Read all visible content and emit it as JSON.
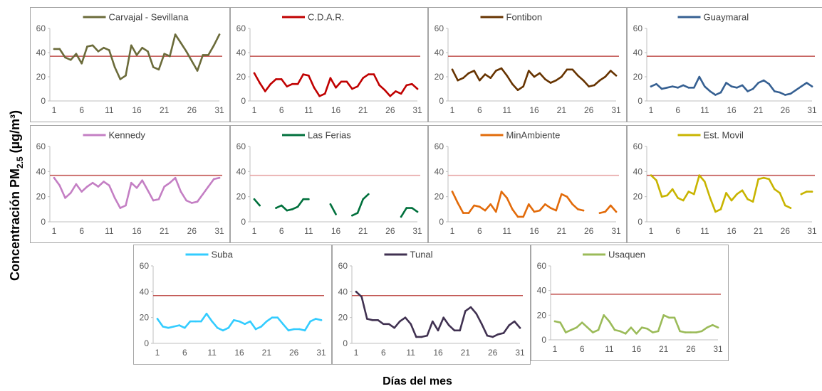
{
  "figure": {
    "ylabel_main": "Concentración PM",
    "ylabel_sub": "2.5",
    "ylabel_unit": " (µg/m³)",
    "xlabel": "Días del mes"
  },
  "chart_data": [
    {
      "type": "line",
      "title": "",
      "series": [
        {
          "name": "Carvajal - Sevillana",
          "color": "#6b6b3a",
          "x": [
            1,
            2,
            3,
            4,
            5,
            6,
            7,
            8,
            9,
            10,
            11,
            12,
            13,
            14,
            15,
            16,
            17,
            18,
            19,
            20,
            21,
            22,
            23,
            24,
            25,
            26,
            27,
            28,
            29,
            30,
            31
          ],
          "values": [
            43,
            43,
            36,
            34,
            39,
            31,
            45,
            46,
            41,
            44,
            42,
            28,
            18,
            21,
            46,
            38,
            44,
            41,
            28,
            26,
            39,
            37,
            55,
            48,
            41,
            33,
            25,
            38,
            38,
            46,
            55
          ]
        }
      ],
      "limit": {
        "value": 37,
        "color": "#c0504d"
      },
      "ylim": [
        0,
        60
      ],
      "yticks": [
        0,
        20,
        40,
        60
      ],
      "xticks": [
        1,
        6,
        11,
        16,
        21,
        26,
        31
      ]
    },
    {
      "type": "line",
      "title": "",
      "series": [
        {
          "name": "C.D.A.R.",
          "color": "#c00000",
          "x": [
            1,
            2,
            3,
            4,
            5,
            6,
            7,
            8,
            9,
            10,
            11,
            12,
            13,
            14,
            15,
            16,
            17,
            18,
            19,
            20,
            21,
            22,
            23,
            24,
            25,
            26,
            27,
            28,
            29,
            30,
            31
          ],
          "values": [
            23,
            15,
            8,
            14,
            18,
            18,
            12,
            14,
            14,
            22,
            21,
            11,
            4,
            6,
            19,
            11,
            16,
            16,
            10,
            12,
            19,
            22,
            22,
            13,
            9,
            4,
            8,
            6,
            13,
            14,
            10
          ]
        }
      ],
      "limit": {
        "value": 37,
        "color": "#c0504d"
      },
      "ylim": [
        0,
        60
      ],
      "yticks": [
        0,
        20,
        40,
        60
      ],
      "xticks": [
        1,
        6,
        11,
        16,
        21,
        26,
        31
      ]
    },
    {
      "type": "line",
      "title": "",
      "series": [
        {
          "name": "Fontibon",
          "color": "#663300",
          "x": [
            1,
            2,
            3,
            4,
            5,
            6,
            7,
            8,
            9,
            10,
            11,
            12,
            13,
            14,
            15,
            16,
            17,
            18,
            19,
            20,
            21,
            22,
            23,
            24,
            25,
            26,
            27,
            28,
            29,
            30,
            31
          ],
          "values": [
            26,
            17,
            19,
            23,
            25,
            17,
            22,
            19,
            25,
            27,
            21,
            14,
            9,
            12,
            25,
            20,
            23,
            18,
            15,
            17,
            20,
            26,
            26,
            21,
            17,
            12,
            13,
            17,
            20,
            25,
            21
          ]
        }
      ],
      "limit": {
        "value": 37,
        "color": "#c0504d"
      },
      "ylim": [
        0,
        60
      ],
      "yticks": [
        0,
        20,
        40,
        60
      ],
      "xticks": [
        1,
        6,
        11,
        16,
        21,
        26,
        31
      ]
    },
    {
      "type": "line",
      "title": "",
      "series": [
        {
          "name": "Guaymaral",
          "color": "#366092",
          "x": [
            1,
            2,
            3,
            4,
            5,
            6,
            7,
            8,
            9,
            10,
            11,
            12,
            13,
            14,
            15,
            16,
            17,
            18,
            19,
            20,
            21,
            22,
            23,
            24,
            25,
            26,
            27,
            28,
            29,
            30,
            31
          ],
          "values": [
            12,
            14,
            10,
            11,
            12,
            11,
            13,
            11,
            11,
            20,
            12,
            8,
            5,
            7,
            15,
            12,
            11,
            13,
            8,
            10,
            15,
            17,
            14,
            8,
            7,
            5,
            6,
            9,
            12,
            15,
            12
          ]
        }
      ],
      "limit": {
        "value": 37,
        "color": "#c0504d"
      },
      "ylim": [
        0,
        60
      ],
      "yticks": [
        0,
        20,
        40,
        60
      ],
      "xticks": [
        1,
        6,
        11,
        16,
        21,
        26,
        31
      ]
    },
    {
      "type": "line",
      "title": "",
      "series": [
        {
          "name": "Kennedy",
          "color": "#c47fc4",
          "x": [
            1,
            2,
            3,
            4,
            5,
            6,
            7,
            8,
            9,
            10,
            11,
            12,
            13,
            14,
            15,
            16,
            17,
            18,
            19,
            20,
            21,
            22,
            23,
            24,
            25,
            26,
            27,
            28,
            29,
            30,
            31
          ],
          "values": [
            35,
            29,
            19,
            23,
            30,
            24,
            28,
            31,
            28,
            32,
            29,
            19,
            11,
            13,
            31,
            27,
            33,
            25,
            17,
            18,
            28,
            31,
            35,
            24,
            17,
            15,
            16,
            22,
            28,
            34,
            35
          ]
        }
      ],
      "limit": {
        "value": 37,
        "color": "#c0504d"
      },
      "ylim": [
        0,
        60
      ],
      "yticks": [
        0,
        20,
        40,
        60
      ],
      "xticks": [
        1,
        6,
        11,
        16,
        21,
        26,
        31
      ]
    },
    {
      "type": "line",
      "title": "",
      "series": [
        {
          "name": "Las Ferias",
          "color": "#00703c",
          "x": [
            1,
            2,
            3,
            4,
            5,
            6,
            7,
            8,
            9,
            10,
            11,
            12,
            13,
            14,
            15,
            16,
            17,
            18,
            19,
            20,
            21,
            22,
            23,
            24,
            25,
            26,
            27,
            28,
            29,
            30,
            31
          ],
          "values": [
            18,
            13,
            null,
            null,
            11,
            13,
            9,
            10,
            12,
            18,
            18,
            null,
            null,
            null,
            14,
            6,
            null,
            null,
            5,
            7,
            18,
            22,
            null,
            null,
            null,
            null,
            null,
            4,
            11,
            11,
            8
          ]
        }
      ],
      "limit": {
        "value": 37,
        "color": "#e6a3a3"
      },
      "ylim": [
        0,
        60
      ],
      "yticks": [
        0,
        20,
        40,
        60
      ],
      "xticks": [
        1,
        6,
        11,
        16,
        21,
        26,
        31
      ]
    },
    {
      "type": "line",
      "title": "",
      "series": [
        {
          "name": "MinAmbiente",
          "color": "#e26b0a",
          "x": [
            1,
            2,
            3,
            4,
            5,
            6,
            7,
            8,
            9,
            10,
            11,
            12,
            13,
            14,
            15,
            16,
            17,
            18,
            19,
            20,
            21,
            22,
            23,
            24,
            25,
            26,
            27,
            28,
            29,
            30,
            31
          ],
          "values": [
            24,
            15,
            7,
            7,
            13,
            12,
            9,
            14,
            8,
            24,
            19,
            10,
            4,
            4,
            14,
            8,
            9,
            14,
            11,
            9,
            22,
            20,
            14,
            10,
            9,
            null,
            null,
            7,
            8,
            13,
            8
          ]
        }
      ],
      "limit": {
        "value": 37,
        "color": "#e6a3a3"
      },
      "ylim": [
        0,
        60
      ],
      "yticks": [
        0,
        20,
        40,
        60
      ],
      "xticks": [
        1,
        6,
        11,
        16,
        21,
        26,
        31
      ]
    },
    {
      "type": "line",
      "title": "",
      "series": [
        {
          "name": "Est. Movil",
          "color": "#c8b400",
          "x": [
            1,
            2,
            3,
            4,
            5,
            6,
            7,
            8,
            9,
            10,
            11,
            12,
            13,
            14,
            15,
            16,
            17,
            18,
            19,
            20,
            21,
            22,
            23,
            24,
            25,
            26,
            27,
            28,
            29,
            30,
            31
          ],
          "values": [
            37,
            33,
            20,
            21,
            26,
            19,
            17,
            24,
            22,
            37,
            32,
            19,
            8,
            10,
            23,
            17,
            22,
            25,
            18,
            16,
            34,
            35,
            34,
            26,
            23,
            13,
            11,
            null,
            22,
            24,
            24
          ]
        }
      ],
      "limit": {
        "value": 37,
        "color": "#c0504d"
      },
      "ylim": [
        0,
        60
      ],
      "yticks": [
        0,
        20,
        40,
        60
      ],
      "xticks": [
        1,
        6,
        11,
        16,
        21,
        26,
        31
      ]
    },
    {
      "type": "line",
      "title": "",
      "series": [
        {
          "name": "Suba",
          "color": "#33ccff",
          "x": [
            1,
            2,
            3,
            4,
            5,
            6,
            7,
            8,
            9,
            10,
            11,
            12,
            13,
            14,
            15,
            16,
            17,
            18,
            19,
            20,
            21,
            22,
            23,
            24,
            25,
            26,
            27,
            28,
            29,
            30,
            31
          ],
          "values": [
            19,
            13,
            12,
            13,
            14,
            12,
            17,
            17,
            17,
            23,
            17,
            12,
            10,
            12,
            18,
            17,
            15,
            17,
            11,
            13,
            17,
            20,
            20,
            15,
            10,
            11,
            11,
            10,
            17,
            19,
            18
          ]
        }
      ],
      "limit": {
        "value": 37,
        "color": "#c0504d"
      },
      "ylim": [
        0,
        60
      ],
      "yticks": [
        0,
        20,
        40,
        60
      ],
      "xticks": [
        1,
        6,
        11,
        16,
        21,
        26,
        31
      ]
    },
    {
      "type": "line",
      "title": "",
      "series": [
        {
          "name": "Tunal",
          "color": "#403151",
          "x": [
            1,
            2,
            3,
            4,
            5,
            6,
            7,
            8,
            9,
            10,
            11,
            12,
            13,
            14,
            15,
            16,
            17,
            18,
            19,
            20,
            21,
            22,
            23,
            24,
            25,
            26,
            27,
            28,
            29,
            30,
            31
          ],
          "values": [
            40,
            36,
            19,
            18,
            18,
            15,
            15,
            12,
            17,
            20,
            15,
            5,
            5,
            6,
            17,
            10,
            20,
            14,
            10,
            10,
            25,
            28,
            23,
            15,
            6,
            5,
            7,
            8,
            14,
            17,
            12
          ]
        }
      ],
      "limit": {
        "value": 37,
        "color": "#c0504d"
      },
      "ylim": [
        0,
        60
      ],
      "yticks": [
        0,
        20,
        40,
        60
      ],
      "xticks": [
        1,
        6,
        11,
        16,
        21,
        26,
        31
      ]
    },
    {
      "type": "line",
      "title": "",
      "series": [
        {
          "name": "Usaquen",
          "color": "#9bbb59",
          "x": [
            1,
            2,
            3,
            4,
            5,
            6,
            7,
            8,
            9,
            10,
            11,
            12,
            13,
            14,
            15,
            16,
            17,
            18,
            19,
            20,
            21,
            22,
            23,
            24,
            25,
            26,
            27,
            28,
            29,
            30,
            31
          ],
          "values": [
            15,
            14,
            6,
            8,
            10,
            14,
            10,
            6,
            8,
            20,
            15,
            8,
            7,
            5,
            10,
            5,
            10,
            9,
            6,
            7,
            20,
            18,
            18,
            7,
            6,
            6,
            6,
            7,
            10,
            12,
            10
          ]
        }
      ],
      "limit": {
        "value": 37,
        "color": "#c0504d"
      },
      "ylim": [
        0,
        60
      ],
      "yticks": [
        0,
        20,
        40,
        60
      ],
      "xticks": [
        1,
        6,
        11,
        16,
        21,
        26,
        31
      ]
    }
  ]
}
